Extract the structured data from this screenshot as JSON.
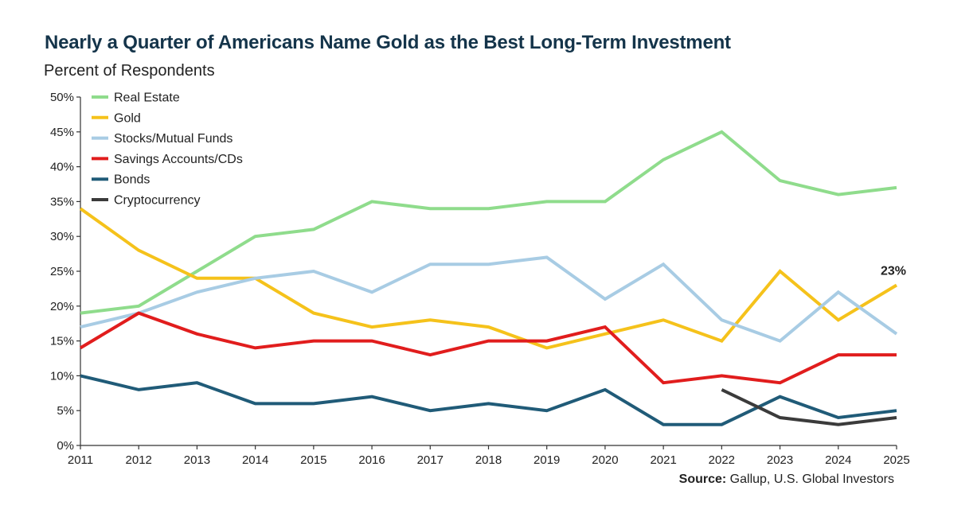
{
  "chart_data": {
    "type": "line",
    "title": "Nearly a Quarter of Americans Name Gold as the Best Long-Term Investment",
    "subtitle": "Percent of Respondents",
    "x": [
      "2011",
      "2012",
      "2013",
      "2014",
      "2015",
      "2016",
      "2017",
      "2018",
      "2019",
      "2020",
      "2021",
      "2022",
      "2023",
      "2024",
      "2025"
    ],
    "y_ticks": [
      "0%",
      "5%",
      "10%",
      "15%",
      "20%",
      "25%",
      "30%",
      "35%",
      "40%",
      "45%",
      "50%"
    ],
    "ylim": [
      0,
      50
    ],
    "grid": false,
    "legend_position": "top-left",
    "series": [
      {
        "name": "Real Estate",
        "color": "#8fdc8c",
        "values": [
          19,
          20,
          25,
          30,
          31,
          35,
          34,
          34,
          35,
          35,
          41,
          45,
          38,
          36,
          37
        ]
      },
      {
        "name": "Gold",
        "color": "#f5c21b",
        "values": [
          34,
          28,
          24,
          24,
          19,
          17,
          18,
          17,
          14,
          16,
          18,
          15,
          25,
          18,
          23
        ]
      },
      {
        "name": "Stocks/Mutual Funds",
        "color": "#a8cce4",
        "values": [
          17,
          19,
          22,
          24,
          25,
          22,
          26,
          26,
          27,
          21,
          26,
          18,
          15,
          22,
          16
        ]
      },
      {
        "name": "Savings Accounts/CDs",
        "color": "#e11d1d",
        "values": [
          14,
          19,
          16,
          14,
          15,
          15,
          13,
          15,
          15,
          17,
          9,
          10,
          9,
          13,
          13
        ]
      },
      {
        "name": "Bonds",
        "color": "#205b78",
        "values": [
          10,
          8,
          9,
          6,
          6,
          7,
          5,
          6,
          5,
          8,
          3,
          3,
          7,
          4,
          5
        ]
      },
      {
        "name": "Cryptocurrency",
        "color": "#3b3b3b",
        "values": [
          null,
          null,
          null,
          null,
          null,
          null,
          null,
          null,
          null,
          null,
          null,
          8,
          4,
          3,
          4
        ]
      }
    ],
    "annotation": {
      "text": "23%",
      "series": "Gold",
      "x": "2025"
    },
    "source_label": "Source:",
    "source_text": " Gallup, U.S. Global Investors"
  }
}
